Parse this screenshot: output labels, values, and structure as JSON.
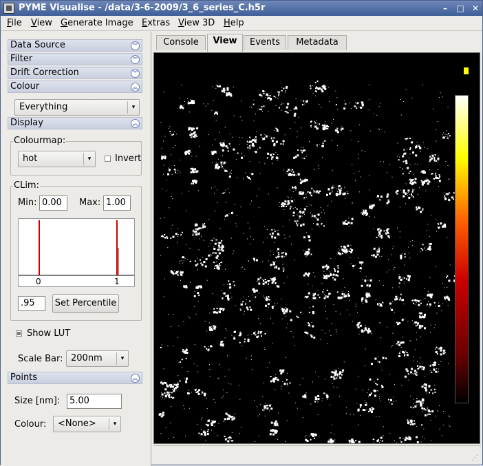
{
  "window": {
    "title": "PYME Visualise - /data/3-6-2009/3_6_series_C.h5r",
    "controls": [
      "–",
      "□",
      "✕"
    ]
  },
  "menubar": [
    {
      "label": "File",
      "mnemonic": "F",
      "rest": "ile"
    },
    {
      "label": "View",
      "mnemonic": "V",
      "rest": "iew"
    },
    {
      "label": "Generate Image",
      "mnemonic": "G",
      "rest": "enerate Image"
    },
    {
      "label": "Extras",
      "mnemonic": "E",
      "rest": "xtras"
    },
    {
      "label": "View 3D",
      "mnemonic": "V",
      "rest": "iew 3D"
    },
    {
      "label": "Help",
      "mnemonic": "H",
      "rest": "elp"
    }
  ],
  "sections": {
    "data_source": "Data Source",
    "filter": "Filter",
    "drift_correction": "Drift Correction",
    "colour": "Colour",
    "display": "Display",
    "points": "Points"
  },
  "colour_panel": {
    "selection": "Everything"
  },
  "display_panel": {
    "colourmap_title": "Colourmap:",
    "colourmap": "hot",
    "invert_label": "Invert",
    "invert_checked": false,
    "clim_title": "CLim:",
    "min_label": "Min:",
    "min_value": "0.00",
    "max_label": "Max:",
    "max_value": "1.00",
    "histogram_ticks": [
      "0",
      "1"
    ],
    "percentile_value": ".95",
    "set_percentile_label": "Set Percentile",
    "show_lut_label": "Show LUT",
    "show_lut_checked": true,
    "scale_bar_label": "Scale Bar:",
    "scale_bar_value": "200nm"
  },
  "points_panel": {
    "size_label": "Size [nm]:",
    "size_value": "5.00",
    "colour_label": "Colour:",
    "colour_value": "<None>"
  },
  "tabs": [
    "Console",
    "View",
    "Events",
    "Metadata"
  ],
  "active_tab": "View",
  "colors": {
    "title_bar": "#4a67a0",
    "section_header": "#d2d7e6",
    "view_background": "#000000",
    "histogram_line": "#cc0000",
    "scale_bar": "#ffff00"
  }
}
